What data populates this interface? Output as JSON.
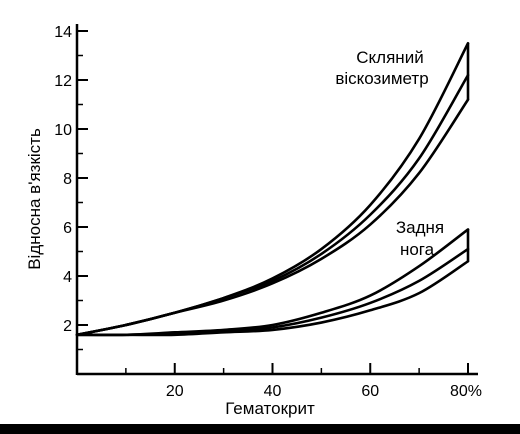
{
  "chart_data": {
    "type": "line",
    "xlabel": "Гематокрит",
    "ylabel": "Відносна в'язкість",
    "xlim": [
      0,
      80
    ],
    "ylim": [
      0,
      14
    ],
    "x_ticks": [
      {
        "value": 20,
        "label": "20"
      },
      {
        "value": 40,
        "label": "40"
      },
      {
        "value": 60,
        "label": "60"
      },
      {
        "value": 80,
        "label": "80%"
      }
    ],
    "y_ticks": [
      {
        "value": 2,
        "label": "2"
      },
      {
        "value": 4,
        "label": "4"
      },
      {
        "value": 6,
        "label": "6"
      },
      {
        "value": 8,
        "label": "8"
      },
      {
        "value": 10,
        "label": "10"
      },
      {
        "value": 12,
        "label": "12"
      },
      {
        "value": 14,
        "label": "14"
      }
    ],
    "grid": false,
    "annotations": {
      "glass_line1": "Скляний",
      "glass_line2": "віскозиметр",
      "leg_line1": "Задня",
      "leg_line2": "нога"
    },
    "series": [
      {
        "group": "glass",
        "x": [
          0,
          10,
          20,
          30,
          40,
          50,
          60,
          70,
          80
        ],
        "y": [
          1.6,
          2.0,
          2.5,
          3.1,
          3.9,
          5.1,
          6.9,
          9.6,
          13.5
        ]
      },
      {
        "group": "glass",
        "x": [
          0,
          10,
          20,
          30,
          40,
          50,
          60,
          70,
          80
        ],
        "y": [
          1.6,
          2.0,
          2.5,
          3.1,
          3.8,
          4.9,
          6.5,
          8.8,
          12.2
        ]
      },
      {
        "group": "glass",
        "x": [
          0,
          10,
          20,
          30,
          40,
          50,
          60,
          70,
          80
        ],
        "y": [
          1.6,
          2.0,
          2.5,
          3.0,
          3.7,
          4.7,
          6.1,
          8.2,
          11.2
        ]
      },
      {
        "group": "leg",
        "x": [
          0,
          10,
          20,
          30,
          40,
          50,
          60,
          70,
          80
        ],
        "y": [
          1.6,
          1.6,
          1.7,
          1.8,
          2.0,
          2.5,
          3.2,
          4.4,
          5.9
        ]
      },
      {
        "group": "leg",
        "x": [
          0,
          10,
          20,
          30,
          40,
          50,
          60,
          70,
          80
        ],
        "y": [
          1.6,
          1.6,
          1.65,
          1.75,
          1.9,
          2.3,
          2.9,
          3.8,
          5.1
        ]
      },
      {
        "group": "leg",
        "x": [
          0,
          10,
          20,
          30,
          40,
          50,
          60,
          70,
          80
        ],
        "y": [
          1.6,
          1.6,
          1.6,
          1.7,
          1.8,
          2.1,
          2.6,
          3.3,
          4.6
        ]
      }
    ]
  }
}
